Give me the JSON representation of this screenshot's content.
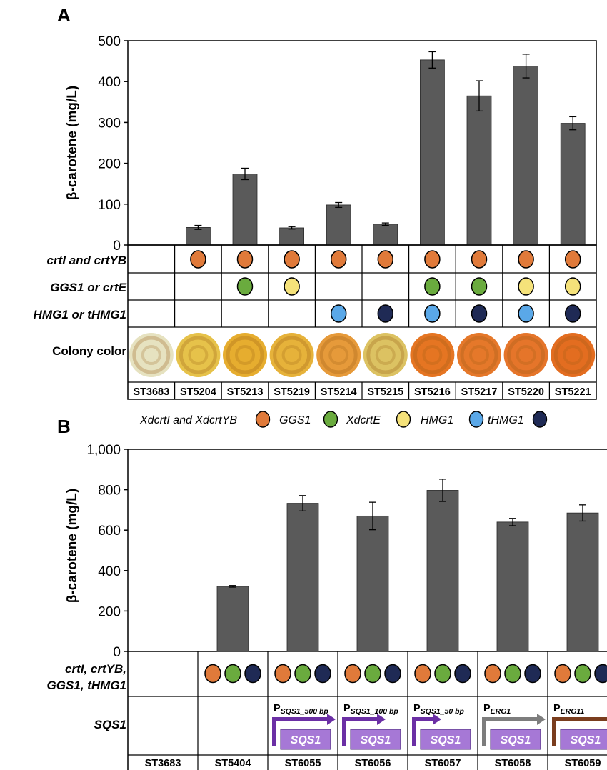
{
  "panel_a": {
    "label": "A",
    "row_labels": [
      "crtI and crtYB",
      "GGS1 or crtE",
      "HMG1 or tHMG1",
      "Colony color"
    ],
    "marker_rows": {
      "crt": [
        "",
        "orange",
        "orange",
        "orange",
        "orange",
        "orange",
        "orange",
        "orange",
        "orange",
        "orange"
      ],
      "ggs": [
        "",
        "",
        "green",
        "yellow",
        "",
        "",
        "green",
        "green",
        "yellow",
        "yellow"
      ],
      "hmg": [
        "",
        "",
        "",
        "",
        "blue",
        "navy",
        "blue",
        "navy",
        "blue",
        "navy"
      ]
    },
    "colony_colors": [
      "#e6e2c0",
      "#e6c24a",
      "#e6ad2f",
      "#e6b23a",
      "#e69a3a",
      "#dcc262",
      "#e57522",
      "#e5782a",
      "#e5752a",
      "#e36d20"
    ],
    "legend": [
      {
        "label": "XdcrtI and XdcrtYB",
        "color": "orange"
      },
      {
        "label": "GGS1",
        "color": "green"
      },
      {
        "label": "XdcrtE",
        "color": "yellow"
      },
      {
        "label": "HMG1",
        "color": "blue"
      },
      {
        "label": "tHMG1",
        "color": "navy"
      }
    ]
  },
  "panel_b": {
    "label": "B",
    "row_labels": [
      "crtI, crtYB,",
      "GGS1, tHMG1",
      "SQS1"
    ],
    "marker_sets": [
      [],
      [
        "orange",
        "green",
        "navy"
      ],
      [
        "orange",
        "green",
        "navy"
      ],
      [
        "orange",
        "green",
        "navy"
      ],
      [
        "orange",
        "green",
        "navy"
      ],
      [
        "orange",
        "green",
        "navy"
      ],
      [
        "orange",
        "green",
        "navy"
      ]
    ],
    "constructs": [
      null,
      null,
      {
        "p_main": "P",
        "p_sub": "SQS1_500 bp",
        "gene": "SQS1",
        "arrow": "purple",
        "size": "long"
      },
      {
        "p_main": "P",
        "p_sub": "SQS1_100 bp",
        "gene": "SQS1",
        "arrow": "purple",
        "size": "medium"
      },
      {
        "p_main": "P",
        "p_sub": "SQS1_50 bp",
        "gene": "SQS1",
        "arrow": "purple",
        "size": "short"
      },
      {
        "p_main": "P",
        "p_sub": "ERG1",
        "gene": "SQS1",
        "arrow": "gray",
        "size": "long"
      },
      {
        "p_main": "P",
        "p_sub": "ERG11",
        "gene": "SQS1",
        "arrow": "brown",
        "size": "long"
      }
    ]
  },
  "colors": {
    "bar": "#5a5a5a",
    "orange": "#e07a3a",
    "green": "#6aab3e",
    "yellow": "#f5e27a",
    "blue": "#5aa8e8",
    "navy": "#1f2a55",
    "purple": "#6b2fa5",
    "gene_box": "#a678d6",
    "gray": "#7d7d7d",
    "brown": "#7a3d1e"
  },
  "chart_data": [
    {
      "type": "bar",
      "ylabel": "β-carotene (mg/L)",
      "ylim": [
        0,
        500
      ],
      "yticks": [
        "0",
        "100",
        "200",
        "300",
        "400",
        "500"
      ],
      "categories": [
        "ST3683",
        "ST5204",
        "ST5213",
        "ST5219",
        "ST5214",
        "ST5215",
        "ST5216",
        "ST5217",
        "ST5220",
        "ST5221"
      ],
      "values": [
        0,
        43,
        174,
        42,
        98,
        51,
        453,
        365,
        438,
        298
      ],
      "errors": [
        0,
        5,
        14,
        3,
        6,
        3,
        20,
        37,
        29,
        16
      ],
      "grid": false
    },
    {
      "type": "bar",
      "ylabel": "β-carotene (mg/L)",
      "ylim": [
        0,
        1000
      ],
      "yticks": [
        "0",
        "200",
        "400",
        "600",
        "800",
        "1,000"
      ],
      "categories": [
        "ST3683",
        "ST5404",
        "ST6055",
        "ST6056",
        "ST6057",
        "ST6058",
        "ST6059"
      ],
      "values": [
        0,
        322,
        733,
        670,
        797,
        640,
        685
      ],
      "errors": [
        0,
        4,
        38,
        68,
        55,
        18,
        40
      ],
      "grid": false
    }
  ]
}
